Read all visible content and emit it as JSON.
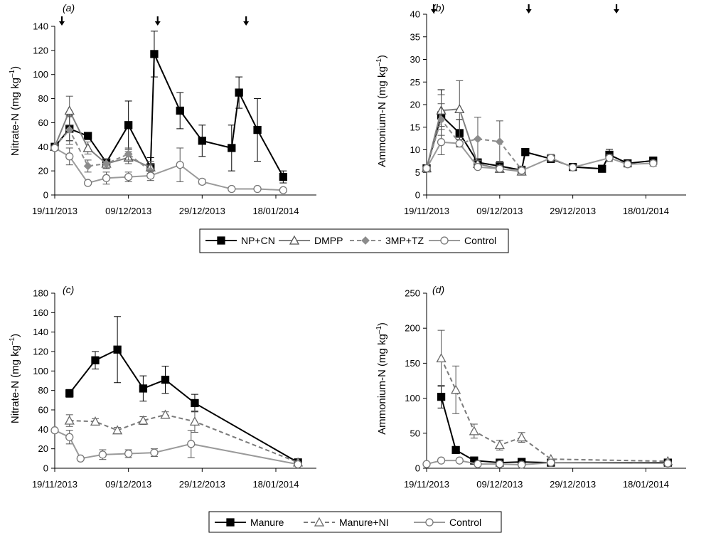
{
  "x_ticks": [
    "19/11/2013",
    "09/12/2013",
    "29/12/2013",
    "18/01/2014"
  ],
  "legend_top": [
    "NP+CN",
    "DMPP",
    "3MP+TZ",
    "Control"
  ],
  "legend_bottom": [
    "Manure",
    "Manure+NI",
    "Control"
  ],
  "chart_data": [
    {
      "id": "a",
      "panel_label": "(a)",
      "type": "line",
      "ylabel": "Nitrate-N (mg kg–1)",
      "ylabel_main": "Nitrate-N (mg kg",
      "ylabel_exp": "–1",
      "ylabel_close": ")",
      "ylim": [
        0,
        140
      ],
      "yticks": [
        0,
        20,
        40,
        60,
        80,
        100,
        120,
        140
      ],
      "xlim": [
        "2013-11-19",
        "2014-01-29"
      ],
      "arrows": [
        "2013-11-19",
        "2013-12-15",
        "2014-01-08"
      ],
      "series": [
        {
          "name": "NP+CN",
          "style": "s1",
          "x": [
            "2013-11-19",
            "2013-11-23",
            "2013-11-28",
            "2013-12-03",
            "2013-12-09",
            "2013-12-15",
            "2013-12-16",
            "2013-12-23",
            "2013-12-29",
            "2014-01-06",
            "2014-01-08",
            "2014-01-13",
            "2014-01-20"
          ],
          "y": [
            40,
            55,
            49,
            27,
            58,
            23,
            117,
            70,
            45,
            39,
            85,
            54,
            15
          ],
          "err": [
            0,
            10,
            0,
            0,
            20,
            8,
            19,
            15,
            13,
            19,
            13,
            26,
            5
          ]
        },
        {
          "name": "DMPP",
          "style": "s2",
          "x": [
            "2013-11-19",
            "2013-11-23",
            "2013-11-28",
            "2013-12-03",
            "2013-12-09",
            "2013-12-15"
          ],
          "y": [
            40,
            70,
            39,
            26,
            31,
            23
          ],
          "err": [
            0,
            12,
            5,
            4,
            5,
            5
          ]
        },
        {
          "name": "3MP+TZ",
          "style": "s3",
          "x": [
            "2013-11-19",
            "2013-11-23",
            "2013-11-28",
            "2013-12-03",
            "2013-12-09",
            "2013-12-15"
          ],
          "y": [
            40,
            54,
            24,
            26,
            34,
            20
          ],
          "err": [
            0,
            12,
            5,
            4,
            5,
            5
          ]
        },
        {
          "name": "Control",
          "style": "s4",
          "x": [
            "2013-11-19",
            "2013-11-23",
            "2013-11-28",
            "2013-12-03",
            "2013-12-09",
            "2013-12-15",
            "2013-12-23",
            "2013-12-29",
            "2014-01-06",
            "2014-01-13",
            "2014-01-20"
          ],
          "y": [
            39,
            32,
            10,
            14,
            15,
            16,
            25,
            11,
            5,
            5,
            4
          ],
          "err": [
            0,
            7,
            0,
            5,
            4,
            4,
            14,
            2,
            0,
            0,
            0
          ]
        }
      ]
    },
    {
      "id": "b",
      "panel_label": "(b)",
      "type": "line",
      "ylabel": "Ammonium-N (mg kg–1)",
      "ylabel_main": "Ammonium-N (mg kg",
      "ylabel_exp": "–1",
      "ylabel_close": ")",
      "ylim": [
        0,
        40
      ],
      "yticks": [
        0,
        5,
        10,
        15,
        20,
        25,
        30,
        35,
        40
      ],
      "xlim": [
        "2013-11-19",
        "2014-01-29"
      ],
      "arrows": [
        "2013-11-19",
        "2013-12-15",
        "2014-01-08"
      ],
      "series": [
        {
          "name": "NP+CN",
          "style": "s1",
          "x": [
            "2013-11-19",
            "2013-11-23",
            "2013-11-28",
            "2013-12-03",
            "2013-12-09",
            "2013-12-15",
            "2013-12-16",
            "2013-12-23",
            "2013-12-29",
            "2014-01-06",
            "2014-01-08",
            "2014-01-13",
            "2014-01-20"
          ],
          "y": [
            5.9,
            17.6,
            13.7,
            7.2,
            6.4,
            5.5,
            9.5,
            8.0,
            6.2,
            5.8,
            8.9,
            7.0,
            7.6
          ],
          "err": [
            0,
            5.7,
            3.0,
            0.8,
            1.0,
            0.8,
            0.8,
            0.8,
            0.4,
            0.4,
            1.2,
            0.5,
            0.8
          ]
        },
        {
          "name": "DMPP",
          "style": "s2",
          "x": [
            "2013-11-19",
            "2013-11-23",
            "2013-11-28",
            "2013-12-03",
            "2013-12-09",
            "2013-12-15"
          ],
          "y": [
            5.9,
            18.7,
            19.0,
            6.9,
            5.8,
            5.2
          ],
          "err": [
            0,
            3.5,
            6.3,
            0.8,
            0.8,
            0.8
          ]
        },
        {
          "name": "3MP+TZ",
          "style": "s3",
          "x": [
            "2013-11-19",
            "2013-11-23",
            "2013-11-28",
            "2013-12-03",
            "2013-12-09",
            "2013-12-15"
          ],
          "y": [
            5.9,
            16.7,
            11.5,
            12.4,
            11.8,
            5.6
          ],
          "err": [
            0,
            3.5,
            0.8,
            4.8,
            4.6,
            0.8
          ]
        },
        {
          "name": "Control",
          "style": "s4",
          "x": [
            "2013-11-19",
            "2013-11-23",
            "2013-11-28",
            "2013-12-03",
            "2013-12-09",
            "2013-12-15",
            "2013-12-23",
            "2013-12-29",
            "2014-01-08",
            "2014-01-13",
            "2014-01-20"
          ],
          "y": [
            5.9,
            11.7,
            11.4,
            6.2,
            5.8,
            5.4,
            8.2,
            6.1,
            8.2,
            6.8,
            7.0
          ],
          "err": [
            0,
            2.8,
            0.8,
            0.4,
            0.5,
            0.5,
            0.8,
            0.4,
            0.8,
            0.4,
            0.6
          ]
        }
      ]
    },
    {
      "id": "c",
      "panel_label": "(c)",
      "type": "line",
      "ylabel": "Nitrate-N (mg kg–1)",
      "ylabel_main": "Nitrate-N (mg kg",
      "ylabel_exp": "–1",
      "ylabel_close": ")",
      "ylim": [
        0,
        180
      ],
      "yticks": [
        0,
        20,
        40,
        60,
        80,
        100,
        120,
        140,
        160,
        180
      ],
      "xlim": [
        "2013-11-19",
        "2014-01-29"
      ],
      "arrows": [],
      "series": [
        {
          "name": "Manure",
          "style": "m1",
          "x": [
            "2013-11-23",
            "2013-11-30",
            "2013-12-06",
            "2013-12-13",
            "2013-12-19",
            "2013-12-27",
            "2014-01-24"
          ],
          "y": [
            77,
            111,
            122,
            82,
            91,
            67,
            6
          ],
          "err": [
            4,
            9,
            34,
            13,
            14,
            9,
            0
          ]
        },
        {
          "name": "Manure+NI",
          "style": "m2",
          "x": [
            "2013-11-23",
            "2013-11-30",
            "2013-12-06",
            "2013-12-13",
            "2013-12-19",
            "2013-12-27",
            "2014-01-24"
          ],
          "y": [
            49,
            48,
            39,
            49,
            55,
            48,
            6
          ],
          "err": [
            6,
            3,
            3,
            4,
            3,
            11,
            0
          ]
        },
        {
          "name": "Control",
          "style": "m3",
          "x": [
            "2013-11-19",
            "2013-11-23",
            "2013-11-26",
            "2013-12-02",
            "2013-12-09",
            "2013-12-16",
            "2013-12-26",
            "2014-01-24"
          ],
          "y": [
            39,
            32,
            10,
            14,
            15,
            16,
            25,
            4
          ],
          "err": [
            0,
            7,
            0,
            5,
            4,
            4,
            14,
            0
          ]
        }
      ]
    },
    {
      "id": "d",
      "panel_label": "(d)",
      "type": "line",
      "ylabel": "Ammonium-N (mg kg–1)",
      "ylabel_main": "Ammonium-N (mg kg",
      "ylabel_exp": "–1",
      "ylabel_close": ")",
      "ylim": [
        0,
        250
      ],
      "yticks": [
        0,
        50,
        100,
        150,
        200,
        250
      ],
      "xlim": [
        "2013-11-19",
        "2014-01-29"
      ],
      "arrows": [],
      "series": [
        {
          "name": "Manure",
          "style": "m1",
          "x": [
            "2013-11-23",
            "2013-11-27",
            "2013-12-02",
            "2013-12-09",
            "2013-12-15",
            "2013-12-23",
            "2014-01-24"
          ],
          "y": [
            102,
            26,
            11,
            8,
            9,
            8,
            8
          ],
          "err": [
            16,
            5,
            0,
            0,
            0,
            0,
            0
          ]
        },
        {
          "name": "Manure+NI",
          "style": "m2",
          "x": [
            "2013-11-23",
            "2013-11-27",
            "2013-12-02",
            "2013-12-09",
            "2013-12-15",
            "2013-12-23",
            "2014-01-24"
          ],
          "y": [
            157,
            112,
            53,
            33,
            44,
            13,
            10
          ],
          "err": [
            40,
            34,
            10,
            7,
            7,
            0,
            0
          ]
        },
        {
          "name": "Control",
          "style": "m3",
          "x": [
            "2013-11-19",
            "2013-11-23",
            "2013-11-28",
            "2013-12-03",
            "2013-12-09",
            "2013-12-15",
            "2013-12-23",
            "2014-01-24"
          ],
          "y": [
            6,
            11,
            11,
            6,
            6,
            5,
            8,
            7
          ],
          "err": [
            0,
            0,
            0,
            0,
            0,
            0,
            0,
            0
          ]
        }
      ]
    }
  ]
}
